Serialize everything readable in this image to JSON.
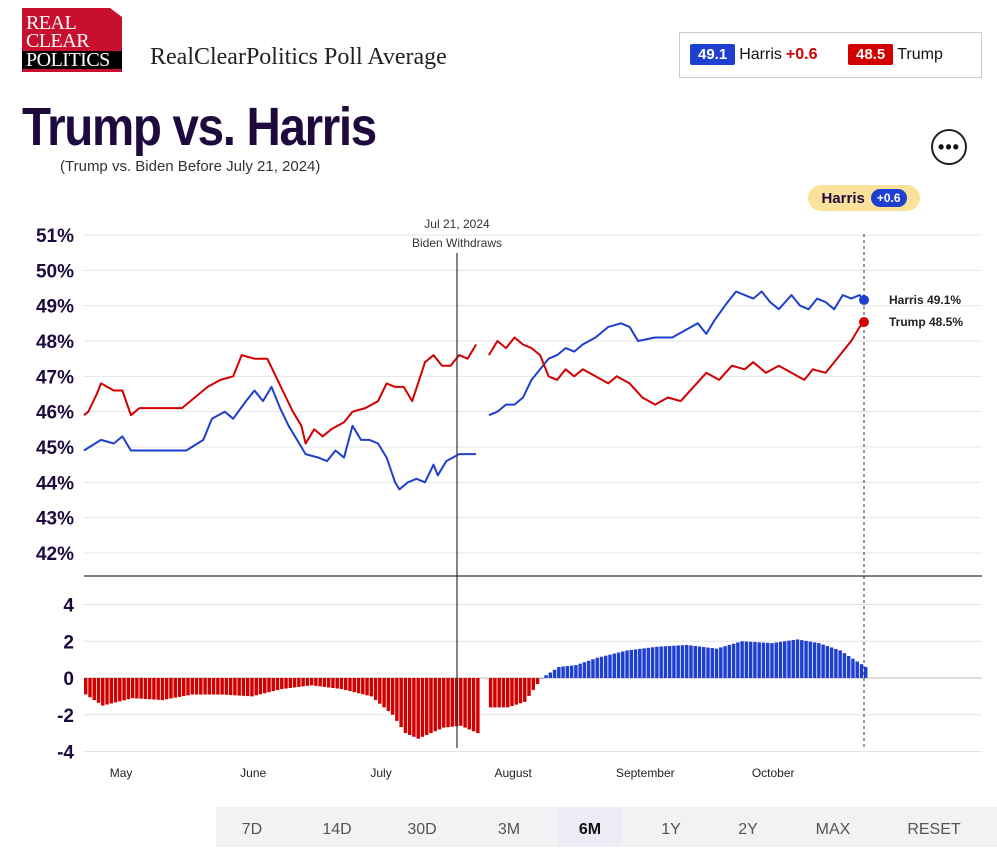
{
  "brand": {
    "logo_line1": "REAL",
    "logo_line2": "CLEAR",
    "logo_line3": "POLITICS",
    "title": "RealClearPolitics Poll Average"
  },
  "scorebox": {
    "harris_value": "49.1",
    "harris_name": "Harris",
    "harris_spread": "+0.6",
    "trump_value": "48.5",
    "trump_name": "Trump"
  },
  "header": {
    "title": "Trump vs. Harris",
    "subtitle": "(Trump vs. Biden Before July 21, 2024)",
    "more_label": "•••"
  },
  "leader_badge": {
    "name": "Harris",
    "spread": "+0.6"
  },
  "range_buttons": [
    "7D",
    "14D",
    "30D",
    "3M",
    "6M",
    "1Y",
    "2Y",
    "MAX",
    "RESET"
  ],
  "range_selected": "6M",
  "colors": {
    "harris": "#1e3fcf",
    "trump": "#d20000",
    "title": "#1e0a3c"
  },
  "chart_data": [
    {
      "type": "line",
      "y_tick_labels": [
        "51%",
        "50%",
        "49%",
        "48%",
        "47%",
        "46%",
        "45%",
        "44%",
        "43%",
        "42%"
      ],
      "ylim": [
        41.35,
        51.2
      ],
      "x_tick_labels": [
        "May",
        "June",
        "July",
        "August",
        "September",
        "October"
      ],
      "x_tick_dates": [
        "2024-05-01",
        "2024-06-01",
        "2024-07-01",
        "2024-08-01",
        "2024-09-01",
        "2024-10-01"
      ],
      "xlim": [
        "2024-04-27",
        "2024-10-27"
      ],
      "grid": true,
      "annotation": {
        "date": "2024-07-21",
        "line1": "Jul 21, 2024",
        "line2": "Biden Withdraws"
      },
      "end_labels": [
        "Harris 49.1%",
        "Trump 48.5%"
      ],
      "series": [
        {
          "key": "harris",
          "color": "#1e3fcf",
          "segments": [
            [
              [
                "2024-04-27",
                44.9
              ],
              [
                "2024-05-01",
                45.2
              ],
              [
                "2024-05-04",
                45.1
              ],
              [
                "2024-05-06",
                45.3
              ],
              [
                "2024-05-08",
                44.9
              ],
              [
                "2024-05-14",
                44.9
              ],
              [
                "2024-05-21",
                44.9
              ],
              [
                "2024-05-25",
                45.2
              ],
              [
                "2024-05-27",
                45.8
              ],
              [
                "2024-05-30",
                46.0
              ],
              [
                "2024-06-01",
                45.8
              ],
              [
                "2024-06-04",
                46.3
              ],
              [
                "2024-06-06",
                46.6
              ],
              [
                "2024-06-08",
                46.3
              ],
              [
                "2024-06-10",
                46.7
              ],
              [
                "2024-06-12",
                46.1
              ],
              [
                "2024-06-14",
                45.6
              ],
              [
                "2024-06-16",
                45.2
              ],
              [
                "2024-06-18",
                44.8
              ],
              [
                "2024-06-21",
                44.7
              ],
              [
                "2024-06-23",
                44.6
              ],
              [
                "2024-06-25",
                44.9
              ],
              [
                "2024-06-27",
                44.7
              ],
              [
                "2024-06-29",
                45.6
              ],
              [
                "2024-07-01",
                45.2
              ],
              [
                "2024-07-03",
                45.2
              ],
              [
                "2024-07-05",
                45.1
              ],
              [
                "2024-07-07",
                44.7
              ],
              [
                "2024-07-09",
                44.0
              ],
              [
                "2024-07-10",
                43.8
              ],
              [
                "2024-07-12",
                44.0
              ],
              [
                "2024-07-14",
                44.1
              ],
              [
                "2024-07-16",
                44.0
              ],
              [
                "2024-07-18",
                44.5
              ],
              [
                "2024-07-19",
                44.2
              ],
              [
                "2024-07-21",
                44.6
              ],
              [
                "2024-07-24",
                44.8
              ],
              [
                "2024-07-28",
                44.8
              ]
            ],
            [
              [
                "2024-07-31",
                45.9
              ],
              [
                "2024-08-02",
                46.0
              ],
              [
                "2024-08-04",
                46.2
              ],
              [
                "2024-08-06",
                46.2
              ],
              [
                "2024-08-08",
                46.4
              ],
              [
                "2024-08-10",
                46.9
              ],
              [
                "2024-08-12",
                47.2
              ],
              [
                "2024-08-14",
                47.5
              ],
              [
                "2024-08-16",
                47.6
              ],
              [
                "2024-08-18",
                47.8
              ],
              [
                "2024-08-20",
                47.7
              ],
              [
                "2024-08-22",
                47.9
              ],
              [
                "2024-08-25",
                48.1
              ],
              [
                "2024-08-28",
                48.4
              ],
              [
                "2024-08-31",
                48.5
              ],
              [
                "2024-09-02",
                48.4
              ],
              [
                "2024-09-04",
                48.0
              ],
              [
                "2024-09-08",
                48.1
              ],
              [
                "2024-09-12",
                48.1
              ],
              [
                "2024-09-15",
                48.3
              ],
              [
                "2024-09-18",
                48.5
              ],
              [
                "2024-09-20",
                48.2
              ],
              [
                "2024-09-22",
                48.6
              ],
              [
                "2024-09-25",
                49.1
              ],
              [
                "2024-09-27",
                49.4
              ],
              [
                "2024-09-29",
                49.3
              ],
              [
                "2024-10-01",
                49.2
              ],
              [
                "2024-10-03",
                49.4
              ],
              [
                "2024-10-05",
                49.1
              ],
              [
                "2024-10-07",
                48.9
              ],
              [
                "2024-10-10",
                49.3
              ],
              [
                "2024-10-12",
                49.0
              ],
              [
                "2024-10-14",
                48.9
              ],
              [
                "2024-10-16",
                49.2
              ],
              [
                "2024-10-18",
                49.1
              ],
              [
                "2024-10-20",
                48.9
              ],
              [
                "2024-10-22",
                49.3
              ],
              [
                "2024-10-24",
                49.2
              ],
              [
                "2024-10-26",
                49.3
              ],
              [
                "2024-10-27",
                49.1
              ]
            ]
          ]
        },
        {
          "key": "trump",
          "color": "#d20000",
          "segments": [
            [
              [
                "2024-04-27",
                45.9
              ],
              [
                "2024-04-28",
                46.0
              ],
              [
                "2024-04-30",
                46.5
              ],
              [
                "2024-05-01",
                46.8
              ],
              [
                "2024-05-04",
                46.6
              ],
              [
                "2024-05-06",
                46.6
              ],
              [
                "2024-05-08",
                45.9
              ],
              [
                "2024-05-10",
                46.1
              ],
              [
                "2024-05-15",
                46.1
              ],
              [
                "2024-05-20",
                46.1
              ],
              [
                "2024-05-23",
                46.4
              ],
              [
                "2024-05-26",
                46.7
              ],
              [
                "2024-05-29",
                46.9
              ],
              [
                "2024-06-01",
                47.0
              ],
              [
                "2024-06-03",
                47.6
              ],
              [
                "2024-06-06",
                47.5
              ],
              [
                "2024-06-09",
                47.5
              ],
              [
                "2024-06-11",
                47.0
              ],
              [
                "2024-06-13",
                46.5
              ],
              [
                "2024-06-15",
                46.0
              ],
              [
                "2024-06-17",
                45.6
              ],
              [
                "2024-06-18",
                45.1
              ],
              [
                "2024-06-20",
                45.5
              ],
              [
                "2024-06-22",
                45.3
              ],
              [
                "2024-06-24",
                45.5
              ],
              [
                "2024-06-27",
                45.7
              ],
              [
                "2024-06-29",
                46.0
              ],
              [
                "2024-07-02",
                46.1
              ],
              [
                "2024-07-05",
                46.3
              ],
              [
                "2024-07-07",
                46.8
              ],
              [
                "2024-07-09",
                46.7
              ],
              [
                "2024-07-11",
                46.7
              ],
              [
                "2024-07-13",
                46.3
              ],
              [
                "2024-07-16",
                47.4
              ],
              [
                "2024-07-18",
                47.6
              ],
              [
                "2024-07-20",
                47.3
              ],
              [
                "2024-07-22",
                47.3
              ],
              [
                "2024-07-24",
                47.6
              ],
              [
                "2024-07-26",
                47.5
              ],
              [
                "2024-07-28",
                47.9
              ]
            ],
            [
              [
                "2024-07-31",
                47.6
              ],
              [
                "2024-08-02",
                48.0
              ],
              [
                "2024-08-04",
                47.8
              ],
              [
                "2024-08-06",
                48.1
              ],
              [
                "2024-08-08",
                47.9
              ],
              [
                "2024-08-10",
                47.8
              ],
              [
                "2024-08-12",
                47.6
              ],
              [
                "2024-08-14",
                47.0
              ],
              [
                "2024-08-16",
                46.9
              ],
              [
                "2024-08-18",
                47.2
              ],
              [
                "2024-08-20",
                47.0
              ],
              [
                "2024-08-22",
                47.2
              ],
              [
                "2024-08-25",
                47.0
              ],
              [
                "2024-08-28",
                46.8
              ],
              [
                "2024-08-30",
                47.0
              ],
              [
                "2024-09-02",
                46.8
              ],
              [
                "2024-09-05",
                46.4
              ],
              [
                "2024-09-08",
                46.2
              ],
              [
                "2024-09-11",
                46.4
              ],
              [
                "2024-09-14",
                46.3
              ],
              [
                "2024-09-17",
                46.7
              ],
              [
                "2024-09-20",
                47.1
              ],
              [
                "2024-09-23",
                46.9
              ],
              [
                "2024-09-26",
                47.3
              ],
              [
                "2024-09-29",
                47.2
              ],
              [
                "2024-10-01",
                47.4
              ],
              [
                "2024-10-04",
                47.1
              ],
              [
                "2024-10-07",
                47.3
              ],
              [
                "2024-10-10",
                47.1
              ],
              [
                "2024-10-13",
                46.9
              ],
              [
                "2024-10-15",
                47.2
              ],
              [
                "2024-10-18",
                47.1
              ],
              [
                "2024-10-20",
                47.4
              ],
              [
                "2024-10-22",
                47.7
              ],
              [
                "2024-10-24",
                48.0
              ],
              [
                "2024-10-26",
                48.4
              ],
              [
                "2024-10-27",
                48.5
              ]
            ]
          ]
        }
      ]
    },
    {
      "type": "bar",
      "y_tick_labels": [
        "4",
        "2",
        "0",
        "-2",
        "-4"
      ],
      "ylim": [
        -4.1,
        4.6
      ],
      "grid": true,
      "spread_points": [
        [
          "2024-04-27",
          -0.9
        ],
        [
          "2024-05-01",
          -1.5
        ],
        [
          "2024-05-08",
          -1.1
        ],
        [
          "2024-05-15",
          -1.2
        ],
        [
          "2024-05-22",
          -0.9
        ],
        [
          "2024-05-29",
          -0.9
        ],
        [
          "2024-06-05",
          -1.0
        ],
        [
          "2024-06-12",
          -0.6
        ],
        [
          "2024-06-19",
          -0.4
        ],
        [
          "2024-06-26",
          -0.6
        ],
        [
          "2024-07-03",
          -1.0
        ],
        [
          "2024-07-08",
          -2.0
        ],
        [
          "2024-07-11",
          -3.0
        ],
        [
          "2024-07-14",
          -3.3
        ],
        [
          "2024-07-17",
          -3.0
        ],
        [
          "2024-07-20",
          -2.7
        ],
        [
          "2024-07-24",
          -2.6
        ],
        [
          "2024-07-28",
          -3.0
        ],
        [
          "2024-07-31",
          -1.6
        ],
        [
          "2024-08-04",
          -1.6
        ],
        [
          "2024-08-08",
          -1.3
        ],
        [
          "2024-08-12",
          0.0
        ],
        [
          "2024-08-16",
          0.6
        ],
        [
          "2024-08-20",
          0.7
        ],
        [
          "2024-08-25",
          1.1
        ],
        [
          "2024-09-01",
          1.5
        ],
        [
          "2024-09-08",
          1.7
        ],
        [
          "2024-09-15",
          1.8
        ],
        [
          "2024-09-22",
          1.6
        ],
        [
          "2024-09-28",
          2.0
        ],
        [
          "2024-10-05",
          1.9
        ],
        [
          "2024-10-11",
          2.1
        ],
        [
          "2024-10-16",
          1.9
        ],
        [
          "2024-10-21",
          1.5
        ],
        [
          "2024-10-25",
          0.9
        ],
        [
          "2024-10-27",
          0.6
        ]
      ],
      "colors": {
        "positive": "#1e3fcf",
        "negative": "#d20000"
      }
    }
  ]
}
